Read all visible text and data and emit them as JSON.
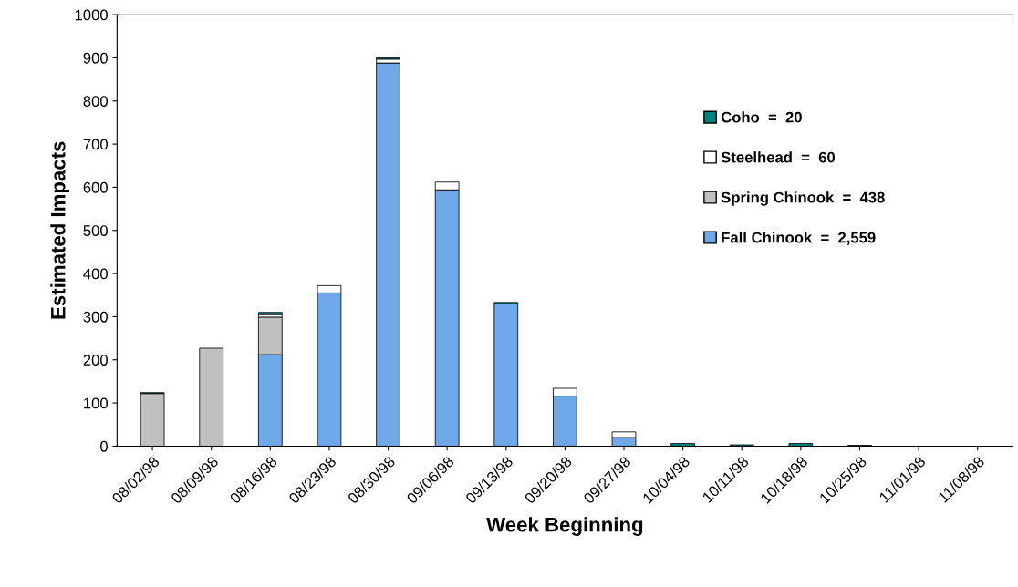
{
  "chart_data": {
    "type": "bar",
    "stacked": true,
    "xlabel": "Week Beginning",
    "ylabel": "Estimated Impacts",
    "categories": [
      "08/02/98",
      "08/09/98",
      "08/16/98",
      "08/23/98",
      "08/30/98",
      "09/06/98",
      "09/13/98",
      "09/20/98",
      "09/27/98",
      "10/04/98",
      "10/11/98",
      "10/18/98",
      "10/25/98",
      "11/01/98",
      "11/08/98"
    ],
    "series": [
      {
        "name": "Fall Chinook  =  2,559",
        "color": "#6fa8e8",
        "values": [
          0,
          0,
          212,
          355,
          888,
          594,
          330,
          116,
          20,
          0,
          0,
          0,
          0,
          0,
          0
        ]
      },
      {
        "name": "Spring Chinook  =  438",
        "color": "#c0c0c0",
        "values": [
          122,
          227,
          87,
          0,
          0,
          0,
          0,
          0,
          0,
          0,
          0,
          0,
          0,
          0,
          0
        ]
      },
      {
        "name": "Steelhead  =  60",
        "color": "#ffffff",
        "values": [
          0,
          0,
          6,
          17,
          9,
          18,
          0,
          18,
          13,
          0,
          0,
          0,
          0,
          0,
          0
        ]
      },
      {
        "name": "Coho  =  20",
        "color": "#008080",
        "values": [
          2,
          0,
          5,
          0,
          3,
          0,
          3,
          0,
          0,
          6,
          3,
          6,
          2,
          0,
          0
        ]
      }
    ],
    "ylim": [
      0,
      1000
    ],
    "yticks": [
      0,
      100,
      200,
      300,
      400,
      500,
      600,
      700,
      800,
      900,
      1000
    ],
    "grid": false,
    "legend": "right"
  }
}
